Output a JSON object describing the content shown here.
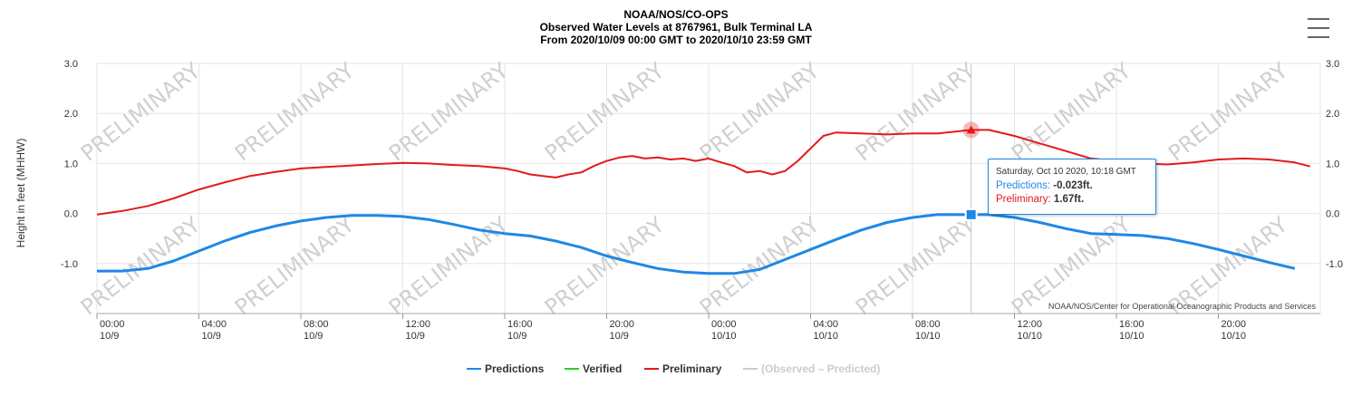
{
  "header": {
    "line1": "NOAA/NOS/CO-OPS",
    "line2": "Observed Water Levels at 8767961, Bulk Terminal LA",
    "line3": "From 2020/10/09 00:00 GMT to 2020/10/10 23:59 GMT"
  },
  "watermark": "PRELIMINARY",
  "credit": "NOAA/NOS/Center for Operational Oceanographic Products and Services",
  "tooltip": {
    "date": "Saturday, Oct 10 2020, 10:18 GMT",
    "pred_label": "Predictions:",
    "pred_value": "-0.023ft.",
    "prelim_label": "Preliminary:",
    "prelim_value": "1.67ft."
  },
  "legend": [
    {
      "label": "Predictions",
      "color": "#1e88e5",
      "active": true
    },
    {
      "label": "Verified",
      "color": "#2ecc2e",
      "active": true
    },
    {
      "label": "Preliminary",
      "color": "#e31a1c",
      "active": true
    },
    {
      "label": "(Observed – Predicted)",
      "color": "#cccccc",
      "active": false
    }
  ],
  "menu_icon": "hamburger-menu-icon",
  "chart_data": {
    "type": "line",
    "ylabel": "Height in feet (MHHW)",
    "ylim": [
      -2.0,
      3.0
    ],
    "yticks": [
      "-1.0",
      "0.0",
      "1.0",
      "2.0",
      "3.0"
    ],
    "ytick_values": [
      -1.0,
      0.0,
      1.0,
      2.0,
      3.0
    ],
    "xlim_hours": [
      0,
      48
    ],
    "xticks": [
      {
        "h": 0,
        "time": "00:00",
        "date": "10/9"
      },
      {
        "h": 4,
        "time": "04:00",
        "date": "10/9"
      },
      {
        "h": 8,
        "time": "08:00",
        "date": "10/9"
      },
      {
        "h": 12,
        "time": "12:00",
        "date": "10/9"
      },
      {
        "h": 16,
        "time": "16:00",
        "date": "10/9"
      },
      {
        "h": 20,
        "time": "20:00",
        "date": "10/9"
      },
      {
        "h": 24,
        "time": "00:00",
        "date": "10/10"
      },
      {
        "h": 28,
        "time": "04:00",
        "date": "10/10"
      },
      {
        "h": 32,
        "time": "08:00",
        "date": "10/10"
      },
      {
        "h": 36,
        "time": "12:00",
        "date": "10/10"
      },
      {
        "h": 40,
        "time": "16:00",
        "date": "10/10"
      },
      {
        "h": 44,
        "time": "20:00",
        "date": "10/10"
      }
    ],
    "series": [
      {
        "name": "Predictions",
        "color": "#1e88e5",
        "points": [
          [
            0,
            -1.15
          ],
          [
            1,
            -1.15
          ],
          [
            2,
            -1.1
          ],
          [
            3,
            -0.95
          ],
          [
            4,
            -0.75
          ],
          [
            5,
            -0.55
          ],
          [
            6,
            -0.38
          ],
          [
            7,
            -0.25
          ],
          [
            8,
            -0.15
          ],
          [
            9,
            -0.08
          ],
          [
            10,
            -0.04
          ],
          [
            11,
            -0.04
          ],
          [
            12,
            -0.06
          ],
          [
            13,
            -0.12
          ],
          [
            14,
            -0.22
          ],
          [
            15,
            -0.33
          ],
          [
            16,
            -0.4
          ],
          [
            17,
            -0.45
          ],
          [
            18,
            -0.55
          ],
          [
            19,
            -0.68
          ],
          [
            20,
            -0.85
          ],
          [
            21,
            -0.98
          ],
          [
            22,
            -1.1
          ],
          [
            23,
            -1.17
          ],
          [
            24,
            -1.2
          ],
          [
            25,
            -1.2
          ],
          [
            26,
            -1.12
          ],
          [
            27,
            -0.92
          ],
          [
            28,
            -0.72
          ],
          [
            29,
            -0.52
          ],
          [
            30,
            -0.33
          ],
          [
            31,
            -0.18
          ],
          [
            32,
            -0.08
          ],
          [
            33,
            -0.02
          ],
          [
            34.3,
            -0.023
          ],
          [
            35,
            -0.02
          ],
          [
            36,
            -0.08
          ],
          [
            37,
            -0.18
          ],
          [
            38,
            -0.3
          ],
          [
            39,
            -0.4
          ],
          [
            40,
            -0.42
          ],
          [
            41,
            -0.44
          ],
          [
            42,
            -0.5
          ],
          [
            43,
            -0.6
          ],
          [
            44,
            -0.72
          ],
          [
            45,
            -0.85
          ],
          [
            46,
            -0.98
          ],
          [
            47,
            -1.1
          ]
        ]
      },
      {
        "name": "Preliminary",
        "color": "#e31a1c",
        "points": [
          [
            0,
            -0.02
          ],
          [
            1,
            0.05
          ],
          [
            2,
            0.15
          ],
          [
            3,
            0.3
          ],
          [
            4,
            0.48
          ],
          [
            5,
            0.62
          ],
          [
            6,
            0.75
          ],
          [
            7,
            0.83
          ],
          [
            8,
            0.9
          ],
          [
            9,
            0.93
          ],
          [
            10,
            0.96
          ],
          [
            11,
            0.99
          ],
          [
            12,
            1.01
          ],
          [
            13,
            1.0
          ],
          [
            14,
            0.97
          ],
          [
            15,
            0.95
          ],
          [
            16,
            0.9
          ],
          [
            16.5,
            0.85
          ],
          [
            17,
            0.78
          ],
          [
            17.5,
            0.75
          ],
          [
            18,
            0.72
          ],
          [
            18.5,
            0.78
          ],
          [
            19,
            0.82
          ],
          [
            19.5,
            0.95
          ],
          [
            20,
            1.05
          ],
          [
            20.5,
            1.12
          ],
          [
            21,
            1.15
          ],
          [
            21.5,
            1.1
          ],
          [
            22,
            1.12
          ],
          [
            22.5,
            1.08
          ],
          [
            23,
            1.1
          ],
          [
            23.5,
            1.05
          ],
          [
            24,
            1.1
          ],
          [
            24.5,
            1.02
          ],
          [
            25,
            0.95
          ],
          [
            25.5,
            0.82
          ],
          [
            26,
            0.85
          ],
          [
            26.5,
            0.78
          ],
          [
            27,
            0.85
          ],
          [
            27.5,
            1.05
          ],
          [
            28,
            1.3
          ],
          [
            28.5,
            1.55
          ],
          [
            29,
            1.62
          ],
          [
            30,
            1.6
          ],
          [
            31,
            1.58
          ],
          [
            32,
            1.6
          ],
          [
            33,
            1.6
          ],
          [
            34.3,
            1.67
          ],
          [
            35,
            1.67
          ],
          [
            36,
            1.55
          ],
          [
            37,
            1.4
          ],
          [
            38,
            1.25
          ],
          [
            39,
            1.1
          ],
          [
            40,
            1.05
          ],
          [
            41,
            1.0
          ],
          [
            42,
            0.98
          ],
          [
            43,
            1.02
          ],
          [
            44,
            1.08
          ],
          [
            45,
            1.1
          ],
          [
            46,
            1.08
          ],
          [
            47,
            1.02
          ],
          [
            47.6,
            0.94
          ]
        ]
      }
    ],
    "hover_hour": 34.3
  }
}
